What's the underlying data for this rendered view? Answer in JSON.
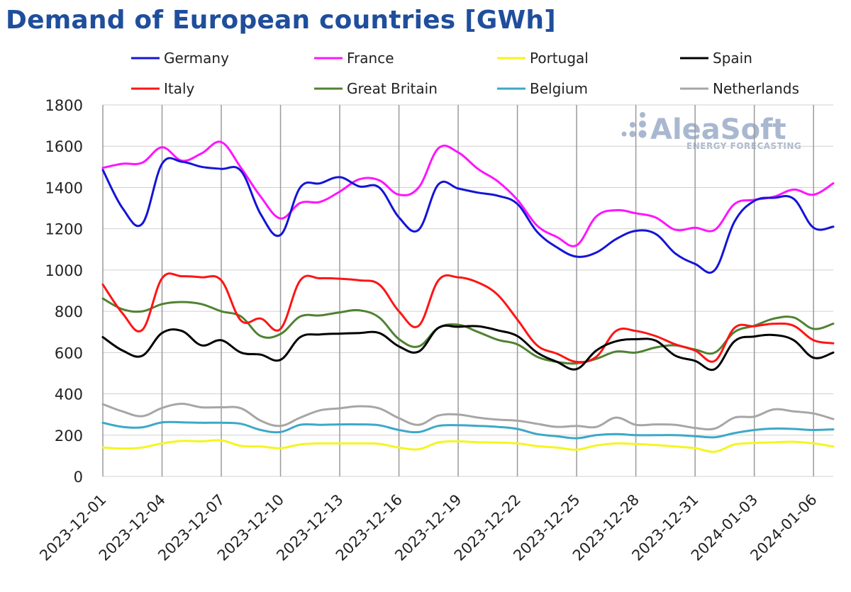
{
  "chart_data": {
    "type": "line",
    "title": "Demand of European countries [GWh]",
    "xlabel": "",
    "ylabel": "",
    "ylim": [
      0,
      1800
    ],
    "yticks": [
      0,
      200,
      400,
      600,
      800,
      1000,
      1200,
      1400,
      1600,
      1800
    ],
    "grid": "vertical gridlines at every labeled date; horizontal gridlines at each y tick",
    "legend_position": "top",
    "x_tick_labels": [
      "2023-12-01",
      "2023-12-04",
      "2023-12-07",
      "2023-12-10",
      "2023-12-13",
      "2023-12-16",
      "2023-12-19",
      "2023-12-22",
      "2023-12-25",
      "2023-12-28",
      "2023-12-31",
      "2024-01-03",
      "2024-01-06"
    ],
    "dates": [
      "2023-12-01",
      "2023-12-02",
      "2023-12-03",
      "2023-12-04",
      "2023-12-05",
      "2023-12-06",
      "2023-12-07",
      "2023-12-08",
      "2023-12-09",
      "2023-12-10",
      "2023-12-11",
      "2023-12-12",
      "2023-12-13",
      "2023-12-14",
      "2023-12-15",
      "2023-12-16",
      "2023-12-17",
      "2023-12-18",
      "2023-12-19",
      "2023-12-20",
      "2023-12-21",
      "2023-12-22",
      "2023-12-23",
      "2023-12-24",
      "2023-12-25",
      "2023-12-26",
      "2023-12-27",
      "2023-12-28",
      "2023-12-29",
      "2023-12-30",
      "2023-12-31",
      "2024-01-01",
      "2024-01-02",
      "2024-01-03",
      "2024-01-04",
      "2024-01-05",
      "2024-01-06",
      "2024-01-07"
    ],
    "series": [
      {
        "name": "Germany",
        "color": "#1414d8",
        "values": [
          1485,
          1300,
          1225,
          1515,
          1525,
          1500,
          1490,
          1480,
          1270,
          1170,
          1400,
          1420,
          1450,
          1405,
          1400,
          1255,
          1195,
          1415,
          1395,
          1375,
          1360,
          1320,
          1185,
          1110,
          1065,
          1085,
          1150,
          1190,
          1175,
          1080,
          1030,
          1000,
          1235,
          1335,
          1350,
          1345,
          1205,
          1210
        ]
      },
      {
        "name": "France",
        "color": "#ff14ff",
        "values": [
          1495,
          1515,
          1520,
          1595,
          1530,
          1565,
          1620,
          1495,
          1355,
          1250,
          1325,
          1330,
          1380,
          1440,
          1435,
          1365,
          1400,
          1590,
          1570,
          1490,
          1430,
          1340,
          1215,
          1160,
          1120,
          1260,
          1290,
          1275,
          1255,
          1195,
          1205,
          1195,
          1320,
          1340,
          1355,
          1390,
          1365,
          1420
        ]
      },
      {
        "name": "Portugal",
        "color": "#f5f520",
        "values": [
          140,
          135,
          140,
          160,
          172,
          170,
          175,
          148,
          145,
          137,
          155,
          160,
          160,
          160,
          158,
          140,
          132,
          165,
          170,
          166,
          164,
          160,
          147,
          140,
          130,
          150,
          160,
          157,
          152,
          145,
          137,
          120,
          155,
          162,
          165,
          168,
          160,
          145
        ]
      },
      {
        "name": "Spain",
        "color": "#000000",
        "values": [
          675,
          610,
          585,
          695,
          705,
          635,
          660,
          600,
          590,
          565,
          675,
          688,
          692,
          695,
          695,
          630,
          605,
          720,
          725,
          728,
          708,
          680,
          600,
          555,
          520,
          610,
          655,
          665,
          658,
          585,
          560,
          520,
          655,
          678,
          685,
          660,
          575,
          600
        ]
      },
      {
        "name": "Italy",
        "color": "#ff1414",
        "values": [
          930,
          790,
          710,
          960,
          970,
          965,
          950,
          755,
          765,
          715,
          950,
          960,
          958,
          950,
          930,
          800,
          730,
          950,
          965,
          940,
          880,
          760,
          635,
          595,
          555,
          580,
          705,
          705,
          680,
          640,
          610,
          560,
          720,
          728,
          740,
          730,
          660,
          645
        ]
      },
      {
        "name": "Great Britain",
        "color": "#508232",
        "values": [
          862,
          810,
          800,
          835,
          845,
          835,
          800,
          775,
          680,
          690,
          775,
          780,
          795,
          805,
          770,
          665,
          630,
          720,
          735,
          700,
          662,
          640,
          580,
          555,
          548,
          570,
          605,
          600,
          625,
          635,
          615,
          600,
          700,
          730,
          765,
          770,
          715,
          740
        ]
      },
      {
        "name": "Belgium",
        "color": "#3ca8c8",
        "values": [
          260,
          240,
          238,
          262,
          262,
          260,
          260,
          255,
          225,
          215,
          250,
          250,
          252,
          252,
          248,
          225,
          215,
          245,
          248,
          245,
          240,
          230,
          205,
          195,
          185,
          200,
          205,
          200,
          200,
          200,
          195,
          190,
          210,
          225,
          232,
          230,
          225,
          228
        ]
      },
      {
        "name": "Netherlands",
        "color": "#a6a6a6",
        "values": [
          350,
          315,
          292,
          332,
          352,
          335,
          335,
          330,
          270,
          245,
          285,
          320,
          330,
          340,
          330,
          282,
          250,
          295,
          300,
          285,
          275,
          270,
          255,
          240,
          245,
          240,
          285,
          250,
          252,
          250,
          235,
          232,
          285,
          290,
          325,
          315,
          305,
          278
        ]
      }
    ]
  },
  "watermark": {
    "brand": "AleaSoft",
    "tagline": "ENERGY FORECASTING"
  }
}
